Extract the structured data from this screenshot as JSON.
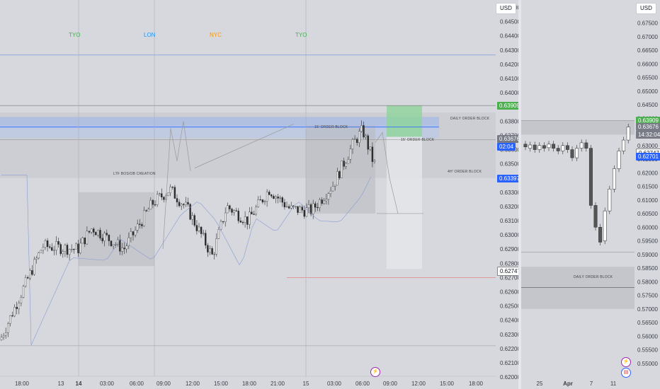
{
  "currency": "USD",
  "main_chart": {
    "price_ticks": [
      "0.64600",
      "0.64500",
      "0.64400",
      "0.64300",
      "0.64200",
      "0.64100",
      "0.64000",
      "0.63900",
      "0.63800",
      "0.63700",
      "0.63600",
      "0.63500",
      "0.63400",
      "0.63300",
      "0.63200",
      "0.63100",
      "0.63000",
      "0.62900",
      "0.62800",
      "0.62700",
      "0.62600",
      "0.62500",
      "0.62400",
      "0.62300",
      "0.62200",
      "0.62100",
      "0.62000"
    ],
    "time_ticks": [
      {
        "label": "18:00",
        "bold": false
      },
      {
        "label": "13",
        "bold": false
      },
      {
        "label": "14",
        "bold": true
      },
      {
        "label": "03:00",
        "bold": false
      },
      {
        "label": "06:00",
        "bold": false
      },
      {
        "label": "09:00",
        "bold": false
      },
      {
        "label": "12:00",
        "bold": false
      },
      {
        "label": "15:00",
        "bold": false
      },
      {
        "label": "18:00",
        "bold": false
      },
      {
        "label": "21:00",
        "bold": false
      },
      {
        "label": "15",
        "bold": false
      },
      {
        "label": "03:00",
        "bold": false
      },
      {
        "label": "06:00",
        "bold": false
      },
      {
        "label": "09:00",
        "bold": false
      },
      {
        "label": "12:00",
        "bold": false
      },
      {
        "label": "15:00",
        "bold": false
      },
      {
        "label": "18:00",
        "bold": false
      }
    ],
    "sessions": [
      {
        "label": "TYO",
        "color": "#4caf50"
      },
      {
        "label": "LON",
        "color": "#2196f3"
      },
      {
        "label": "NYC",
        "color": "#ff9800"
      },
      {
        "label": "TYO",
        "color": "#4caf50"
      }
    ],
    "price_badges": [
      {
        "label": "0.63909",
        "color": "#4caf50",
        "text_color": "#ffffff"
      },
      {
        "label": "0.63676",
        "color": "#787b86",
        "text_color": "#ffffff"
      },
      {
        "label": "02:04",
        "color": "#2962ff",
        "text_color": "#ffffff"
      },
      {
        "label": "0.63397",
        "color": "#2962ff",
        "text_color": "#ffffff"
      },
      {
        "label": "0.62747",
        "color": "#ffffff",
        "text_color": "#131722"
      }
    ],
    "annotations": {
      "daily_order_block": "DAILY ORDER BLOCK",
      "ob_15": "15' ORDER BLOCK",
      "ob_15_right": "15' ORDER BLOCK",
      "ob_4h": "4H' ORDER BLOCK",
      "ltf": "LTF BOS/OB CREATION"
    }
  },
  "side_chart": {
    "price_ticks": [
      "0.67500",
      "0.67000",
      "0.66500",
      "0.66000",
      "0.65500",
      "0.65000",
      "0.64500",
      "0.64000",
      "0.63500",
      "0.63000",
      "0.62500",
      "0.62000",
      "0.61500",
      "0.61000",
      "0.60500",
      "0.60000",
      "0.59500",
      "0.59000",
      "0.58500",
      "0.58000",
      "0.57500",
      "0.57000",
      "0.56500",
      "0.56000",
      "0.55500",
      "0.55000"
    ],
    "time_ticks": [
      {
        "label": "25",
        "bold": false
      },
      {
        "label": "Apr",
        "bold": true
      },
      {
        "label": "7",
        "bold": false
      },
      {
        "label": "11",
        "bold": false
      }
    ],
    "price_badges": [
      {
        "label": "0.63909",
        "color": "#4caf50",
        "text_color": "#ffffff"
      },
      {
        "label": "0.63676",
        "color": "#787b86",
        "text_color": "#ffffff"
      },
      {
        "label": "14:32:04",
        "color": "#787b86",
        "text_color": "#ffffff"
      },
      {
        "label": "0.62747",
        "color": "#ffffff",
        "text_color": "#131722"
      },
      {
        "label": "0.62701",
        "color": "#2962ff",
        "text_color": "#ffffff"
      }
    ],
    "annotations": {
      "daily_order_block": "DAILY ORDER BLOCK"
    }
  },
  "icons": {
    "lightning": "lightning-icon",
    "flag": "us-flag-icon"
  }
}
